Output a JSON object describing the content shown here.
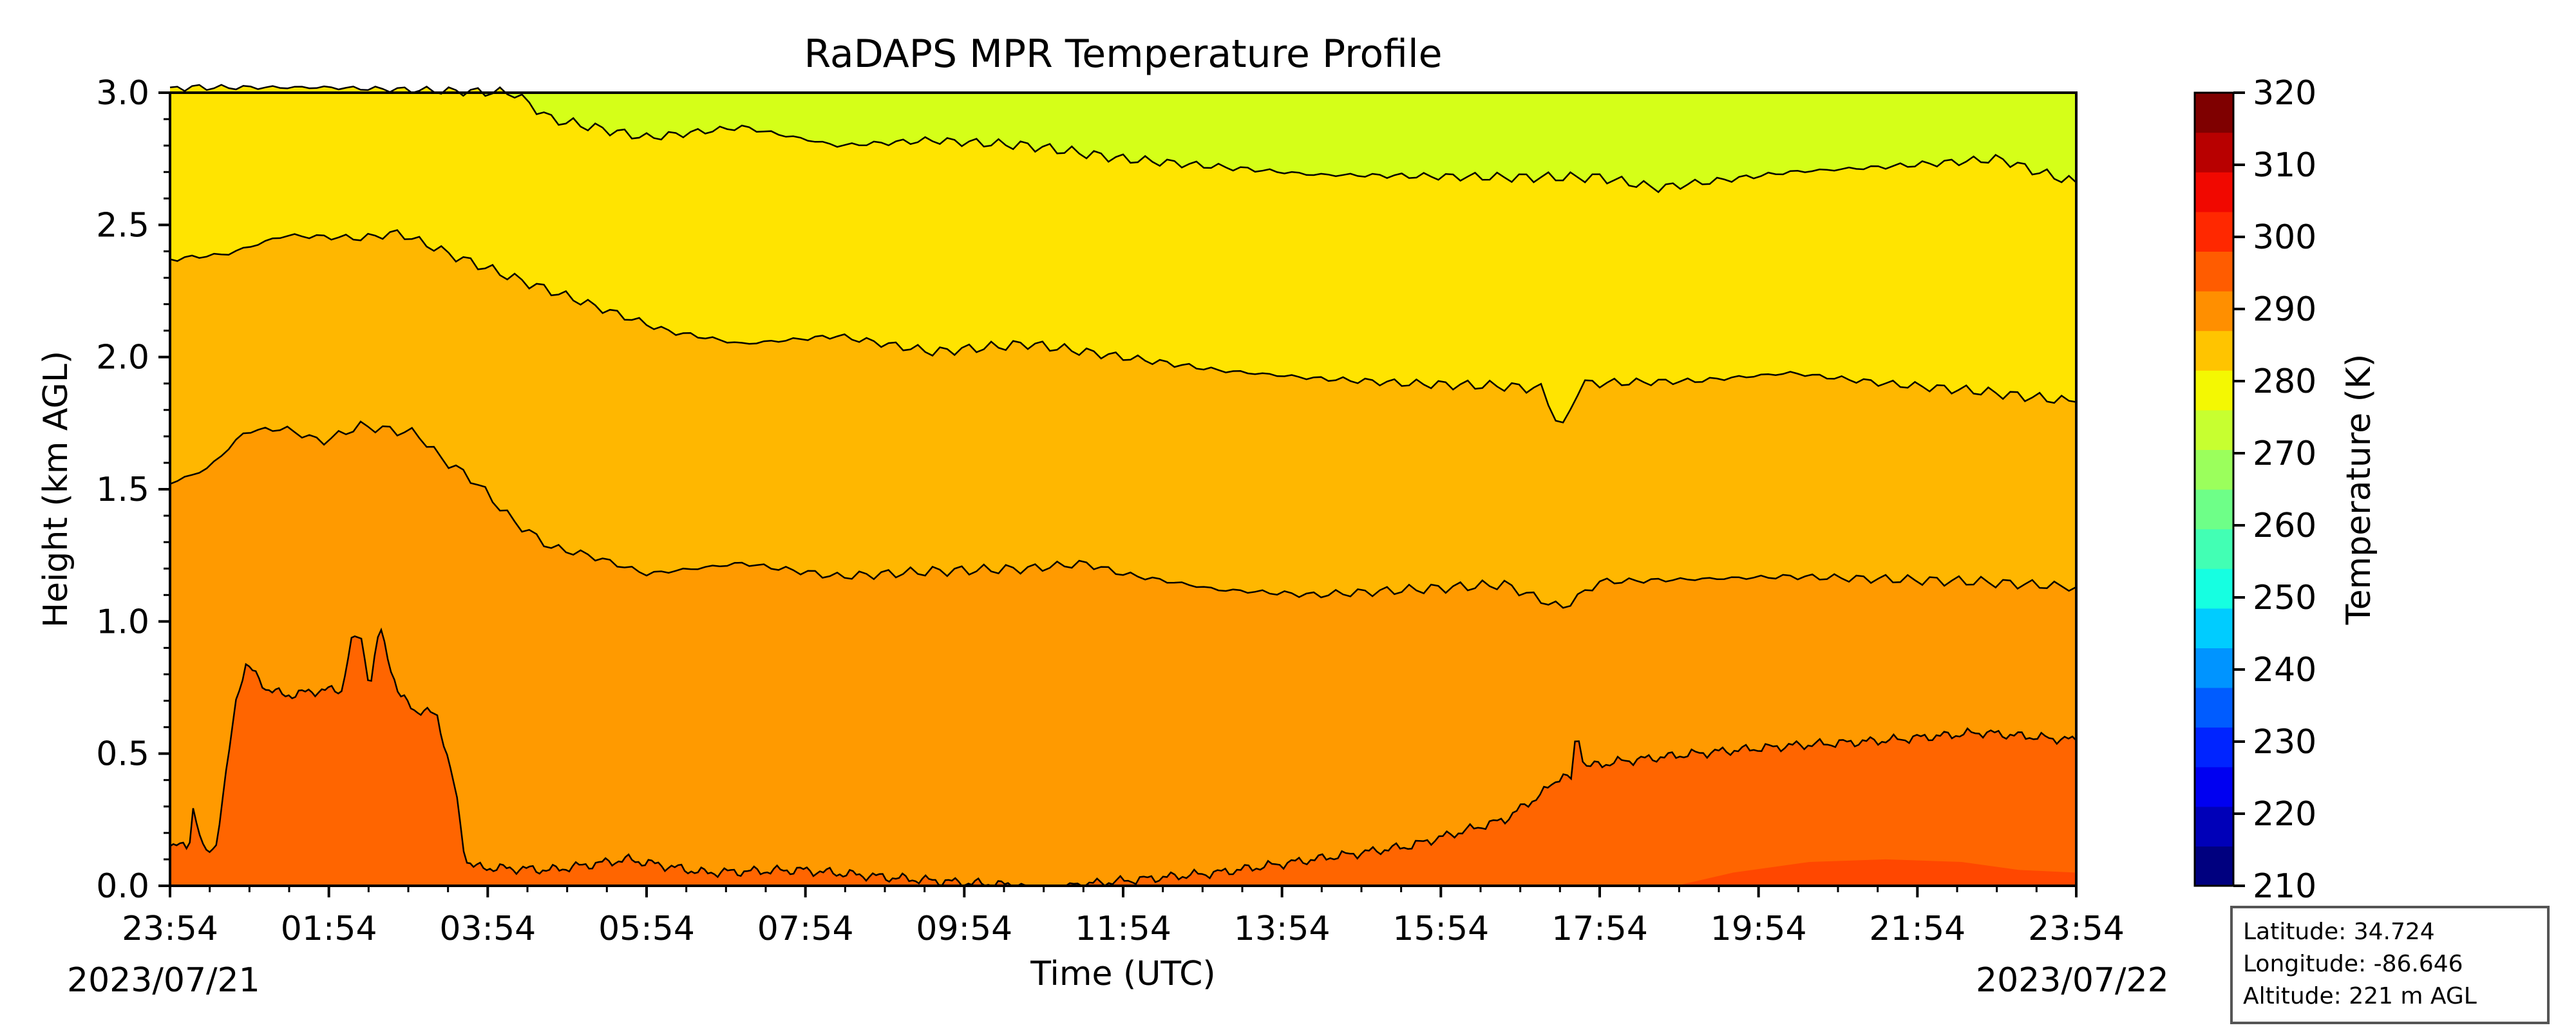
{
  "chart_data": {
    "type": "heatmap",
    "title": "RaDAPS MPR Temperature Profile",
    "xlabel": "Time (UTC)",
    "ylabel": "Height (km AGL)",
    "xticks": [
      "23:54",
      "01:54",
      "03:54",
      "05:54",
      "07:54",
      "09:54",
      "11:54",
      "13:54",
      "15:54",
      "17:54",
      "19:54",
      "21:54",
      "23:54"
    ],
    "x_start_date": "2023/07/21",
    "x_end_date": "2023/07/22",
    "yticks": [
      "0.0",
      "0.5",
      "1.0",
      "1.5",
      "2.0",
      "2.5",
      "3.0"
    ],
    "ylim": [
      0,
      3
    ],
    "colorbar": {
      "label": "Temperature (K)",
      "ticks": [
        "210",
        "220",
        "230",
        "240",
        "250",
        "260",
        "270",
        "280",
        "290",
        "300",
        "310",
        "320"
      ],
      "range": [
        210,
        320
      ],
      "colors": [
        "#00007f",
        "#0000b8",
        "#0000f1",
        "#0024ff",
        "#005cff",
        "#0094ff",
        "#00ccff",
        "#16ffe1",
        "#42ffb4",
        "#6eff88",
        "#9bff5c",
        "#c7ff30",
        "#f4f802",
        "#ffc400",
        "#ff8f00",
        "#ff5c00",
        "#ff2800",
        "#f10800",
        "#b80000",
        "#7f0000"
      ]
    },
    "fill_colors": {
      "above_285": "#d5ff18",
      "280_285": "#ffe400",
      "275_280": "#ffb700",
      "band_290": "#ff9a00",
      "band_295": "#ff8500",
      "band_300": "#ff6500",
      "band_305": "#ff4700",
      "band_310": "#ff2e00"
    },
    "contour_lines": [
      {
        "name": "top",
        "values": [
          [
            0,
            3.02
          ],
          [
            0.08,
            3.02
          ],
          [
            0.18,
            3.0
          ],
          [
            0.2,
            2.9
          ],
          [
            0.25,
            2.83
          ],
          [
            0.3,
            2.87
          ],
          [
            0.35,
            2.8
          ],
          [
            0.4,
            2.82
          ],
          [
            0.45,
            2.8
          ],
          [
            0.5,
            2.75
          ],
          [
            0.55,
            2.72
          ],
          [
            0.6,
            2.69
          ],
          [
            0.7,
            2.68
          ],
          [
            0.75,
            2.68
          ],
          [
            0.78,
            2.64
          ],
          [
            0.85,
            2.7
          ],
          [
            0.9,
            2.72
          ],
          [
            0.96,
            2.75
          ],
          [
            0.98,
            2.7
          ],
          [
            1.0,
            2.66
          ]
        ]
      },
      {
        "name": "upper",
        "values": [
          [
            0,
            2.37
          ],
          [
            0.03,
            2.39
          ],
          [
            0.06,
            2.46
          ],
          [
            0.1,
            2.45
          ],
          [
            0.12,
            2.47
          ],
          [
            0.15,
            2.38
          ],
          [
            0.18,
            2.3
          ],
          [
            0.22,
            2.2
          ],
          [
            0.26,
            2.1
          ],
          [
            0.3,
            2.05
          ],
          [
            0.35,
            2.08
          ],
          [
            0.4,
            2.02
          ],
          [
            0.45,
            2.05
          ],
          [
            0.48,
            2.02
          ],
          [
            0.55,
            1.95
          ],
          [
            0.6,
            1.92
          ],
          [
            0.65,
            1.9
          ],
          [
            0.7,
            1.89
          ],
          [
            0.72,
            1.88
          ],
          [
            0.73,
            1.72
          ],
          [
            0.74,
            1.9
          ],
          [
            0.8,
            1.91
          ],
          [
            0.85,
            1.94
          ],
          [
            0.9,
            1.9
          ],
          [
            0.95,
            1.87
          ],
          [
            1.0,
            1.83
          ]
        ]
      },
      {
        "name": "middle",
        "values": [
          [
            0,
            1.52
          ],
          [
            0.02,
            1.58
          ],
          [
            0.04,
            1.72
          ],
          [
            0.06,
            1.73
          ],
          [
            0.08,
            1.68
          ],
          [
            0.1,
            1.74
          ],
          [
            0.11,
            1.73
          ],
          [
            0.13,
            1.71
          ],
          [
            0.14,
            1.63
          ],
          [
            0.16,
            1.53
          ],
          [
            0.18,
            1.38
          ],
          [
            0.2,
            1.28
          ],
          [
            0.22,
            1.25
          ],
          [
            0.25,
            1.18
          ],
          [
            0.3,
            1.22
          ],
          [
            0.35,
            1.17
          ],
          [
            0.4,
            1.19
          ],
          [
            0.45,
            1.2
          ],
          [
            0.48,
            1.22
          ],
          [
            0.5,
            1.18
          ],
          [
            0.55,
            1.12
          ],
          [
            0.6,
            1.1
          ],
          [
            0.65,
            1.12
          ],
          [
            0.7,
            1.14
          ],
          [
            0.73,
            1.05
          ],
          [
            0.75,
            1.15
          ],
          [
            0.8,
            1.16
          ],
          [
            0.85,
            1.17
          ],
          [
            0.9,
            1.16
          ],
          [
            0.95,
            1.15
          ],
          [
            1.0,
            1.13
          ]
        ]
      },
      {
        "name": "lower_left",
        "values": [
          [
            0,
            0.15
          ],
          [
            0.01,
            0.15
          ],
          [
            0.012,
            0.3
          ],
          [
            0.018,
            0.12
          ],
          [
            0.024,
            0.15
          ],
          [
            0.03,
            0.45
          ],
          [
            0.035,
            0.72
          ],
          [
            0.04,
            0.84
          ],
          [
            0.05,
            0.75
          ],
          [
            0.06,
            0.72
          ],
          [
            0.08,
            0.74
          ],
          [
            0.09,
            0.74
          ],
          [
            0.095,
            0.92
          ],
          [
            0.1,
            0.95
          ],
          [
            0.105,
            0.75
          ],
          [
            0.11,
            0.98
          ],
          [
            0.12,
            0.72
          ],
          [
            0.13,
            0.66
          ],
          [
            0.14,
            0.65
          ],
          [
            0.145,
            0.5
          ],
          [
            0.15,
            0.35
          ],
          [
            0.155,
            0.1
          ],
          [
            0.16,
            0.07
          ],
          [
            0.2,
            0.06
          ],
          [
            0.24,
            0.1
          ],
          [
            0.28,
            0.05
          ],
          [
            0.33,
            0.06
          ],
          [
            0.38,
            0.03
          ],
          [
            0.42,
            0.01
          ],
          [
            0.45,
            0.0
          ]
        ]
      },
      {
        "name": "lower_right",
        "values": [
          [
            0.47,
            0.0
          ],
          [
            0.55,
            0.05
          ],
          [
            0.6,
            0.1
          ],
          [
            0.65,
            0.15
          ],
          [
            0.7,
            0.25
          ],
          [
            0.72,
            0.35
          ],
          [
            0.73,
            0.42
          ],
          [
            0.735,
            0.4
          ],
          [
            0.738,
            0.6
          ],
          [
            0.742,
            0.45
          ],
          [
            0.76,
            0.47
          ],
          [
            0.8,
            0.5
          ],
          [
            0.85,
            0.53
          ],
          [
            0.9,
            0.55
          ],
          [
            0.95,
            0.58
          ],
          [
            1.0,
            0.55
          ]
        ]
      }
    ]
  },
  "info_box": {
    "latitude": "Latitude: 34.724",
    "longitude": "Longitude: -86.646",
    "altitude": "Altitude: 221 m AGL"
  }
}
